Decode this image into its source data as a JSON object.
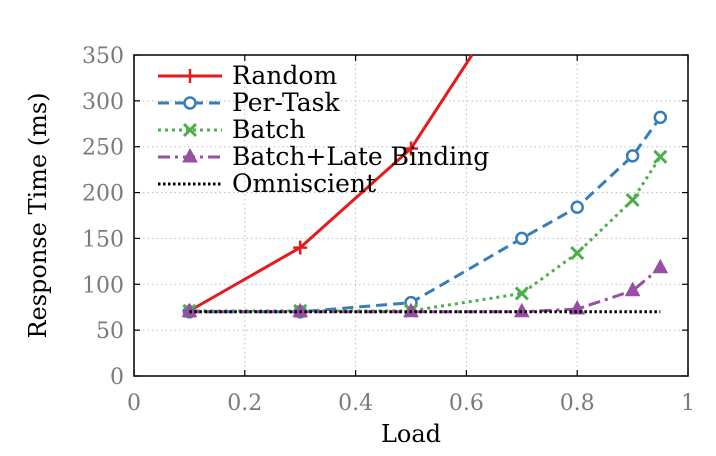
{
  "chart_data": {
    "type": "line",
    "xlabel": "Load",
    "ylabel": "Response Time (ms)",
    "xlim": [
      0,
      1
    ],
    "ylim": [
      0,
      350
    ],
    "xticks": [
      0,
      0.2,
      0.4,
      0.6,
      0.8,
      1
    ],
    "yticks": [
      0,
      50,
      100,
      150,
      200,
      250,
      300,
      350
    ],
    "xtick_labels": [
      "0",
      "0.2",
      "0.4",
      "0.6",
      "0.8",
      "1"
    ],
    "ytick_labels": [
      "0",
      "50",
      "100",
      "150",
      "200",
      "250",
      "300",
      "350"
    ],
    "grid": true,
    "legend_position": "top-left",
    "series": [
      {
        "name": "Random",
        "color": "#e41a1c",
        "dash": "solid",
        "marker": "plus",
        "points": [
          [
            0.1,
            71
          ],
          [
            0.3,
            140
          ],
          [
            0.5,
            248
          ],
          [
            0.61,
            350
          ]
        ],
        "marker_points": [
          [
            0.1,
            71
          ],
          [
            0.3,
            140
          ],
          [
            0.5,
            248
          ]
        ]
      },
      {
        "name": "Per-Task",
        "color": "#377eb8",
        "dash": "dashed",
        "marker": "circle",
        "points": [
          [
            0.1,
            70
          ],
          [
            0.3,
            70
          ],
          [
            0.5,
            80
          ],
          [
            0.7,
            150
          ],
          [
            0.8,
            184
          ],
          [
            0.9,
            240
          ],
          [
            0.95,
            282
          ]
        ]
      },
      {
        "name": "Batch",
        "color": "#4daf4a",
        "dash": "dotted",
        "marker": "x",
        "points": [
          [
            0.1,
            71
          ],
          [
            0.3,
            71
          ],
          [
            0.5,
            71
          ],
          [
            0.7,
            90
          ],
          [
            0.8,
            134
          ],
          [
            0.9,
            192
          ],
          [
            0.95,
            239
          ]
        ]
      },
      {
        "name": "Batch+Late Binding",
        "color": "#984ea3",
        "dash": "dashdot",
        "marker": "triangle",
        "points": [
          [
            0.1,
            70
          ],
          [
            0.3,
            70
          ],
          [
            0.5,
            70
          ],
          [
            0.7,
            70
          ],
          [
            0.8,
            73
          ],
          [
            0.9,
            93
          ],
          [
            0.95,
            118
          ]
        ]
      },
      {
        "name": "Omniscient",
        "color": "#000000",
        "dash": "dotted-dense",
        "marker": "none",
        "points": [
          [
            0.1,
            70
          ],
          [
            0.3,
            70
          ],
          [
            0.5,
            70
          ],
          [
            0.7,
            70
          ],
          [
            0.8,
            70
          ],
          [
            0.9,
            70
          ],
          [
            0.95,
            70
          ]
        ]
      }
    ]
  }
}
